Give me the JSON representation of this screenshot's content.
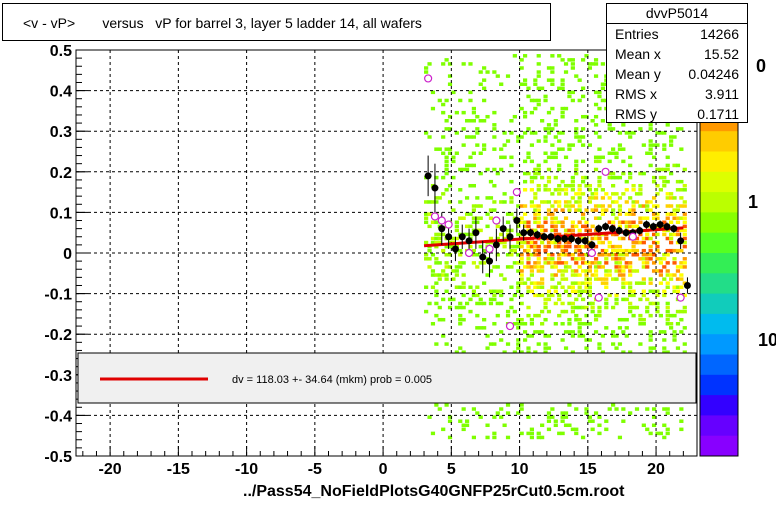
{
  "title": "<v - vP>       versus   vP for barrel 3, layer 5 ladder 14, all wafers",
  "footer": "../Pass54_NoFieldPlotsG40GNFP25rCut0.5cm.root",
  "stats": {
    "name": "dvvP5014",
    "rows": [
      {
        "label": "Entries",
        "value": "14266"
      },
      {
        "label": "Mean x",
        "value": "15.52"
      },
      {
        "label": "Mean y",
        "value": "0.04246"
      },
      {
        "label": "RMS x",
        "value": "3.911"
      },
      {
        "label": "RMS y",
        "value": "0.1711"
      }
    ]
  },
  "legend": {
    "text": "dv =  118.03 +- 34.64 (mkm) prob = 0.005"
  },
  "colorbar": {
    "labels": [
      "0",
      "1",
      "10"
    ]
  },
  "colors": {
    "fit": "#e00000",
    "points": "#000000",
    "open_points": "#cc22cc"
  },
  "chart_data": {
    "type": "scatter",
    "xlim": [
      -22.5,
      23
    ],
    "ylim": [
      -0.5,
      0.5
    ],
    "x_ticks": [
      -20,
      -15,
      -10,
      -5,
      0,
      5,
      10,
      15,
      20
    ],
    "y_ticks": [
      -0.5,
      -0.4,
      -0.3,
      -0.2,
      -0.1,
      0,
      0.1,
      0.2,
      0.3,
      0.4,
      0.5
    ],
    "grid": true,
    "fit_line": {
      "x": [
        3,
        22
      ],
      "y": [
        0.018,
        0.062
      ]
    },
    "points": [
      {
        "x": 3.3,
        "y": 0.19,
        "err": 0.05
      },
      {
        "x": 3.8,
        "y": 0.16,
        "err": 0.06
      },
      {
        "x": 4.3,
        "y": 0.06,
        "err": 0.04
      },
      {
        "x": 4.8,
        "y": 0.04,
        "err": 0.03
      },
      {
        "x": 5.3,
        "y": 0.01,
        "err": 0.03
      },
      {
        "x": 5.8,
        "y": 0.04,
        "err": 0.03
      },
      {
        "x": 6.3,
        "y": 0.03,
        "err": 0.03
      },
      {
        "x": 6.8,
        "y": 0.05,
        "err": 0.04
      },
      {
        "x": 7.3,
        "y": -0.01,
        "err": 0.04
      },
      {
        "x": 7.8,
        "y": -0.02,
        "err": 0.04
      },
      {
        "x": 8.3,
        "y": 0.02,
        "err": 0.04
      },
      {
        "x": 8.8,
        "y": 0.06,
        "err": 0.03
      },
      {
        "x": 9.3,
        "y": 0.04,
        "err": 0.03
      },
      {
        "x": 9.8,
        "y": 0.08,
        "err": 0.03
      },
      {
        "x": 10.3,
        "y": 0.05,
        "err": 0.02
      },
      {
        "x": 10.8,
        "y": 0.05,
        "err": 0.01
      },
      {
        "x": 11.3,
        "y": 0.045,
        "err": 0.01
      },
      {
        "x": 11.8,
        "y": 0.04,
        "err": 0.01
      },
      {
        "x": 12.3,
        "y": 0.04,
        "err": 0.01
      },
      {
        "x": 12.8,
        "y": 0.035,
        "err": 0.01
      },
      {
        "x": 13.3,
        "y": 0.035,
        "err": 0.01
      },
      {
        "x": 13.8,
        "y": 0.035,
        "err": 0.01
      },
      {
        "x": 14.3,
        "y": 0.03,
        "err": 0.01
      },
      {
        "x": 14.8,
        "y": 0.03,
        "err": 0.01
      },
      {
        "x": 15.3,
        "y": 0.02,
        "err": 0.01
      },
      {
        "x": 15.8,
        "y": 0.06,
        "err": 0.01
      },
      {
        "x": 16.3,
        "y": 0.065,
        "err": 0.01
      },
      {
        "x": 16.8,
        "y": 0.06,
        "err": 0.01
      },
      {
        "x": 17.3,
        "y": 0.055,
        "err": 0.01
      },
      {
        "x": 17.8,
        "y": 0.05,
        "err": 0.01
      },
      {
        "x": 18.3,
        "y": 0.05,
        "err": 0.01
      },
      {
        "x": 18.8,
        "y": 0.055,
        "err": 0.01
      },
      {
        "x": 19.3,
        "y": 0.07,
        "err": 0.01
      },
      {
        "x": 19.8,
        "y": 0.065,
        "err": 0.01
      },
      {
        "x": 20.3,
        "y": 0.07,
        "err": 0.01
      },
      {
        "x": 20.8,
        "y": 0.065,
        "err": 0.01
      },
      {
        "x": 21.3,
        "y": 0.06,
        "err": 0.01
      },
      {
        "x": 21.8,
        "y": 0.03,
        "err": 0.02
      },
      {
        "x": 22.3,
        "y": -0.08,
        "err": 0.02
      }
    ],
    "open_points": [
      {
        "x": 3.3,
        "y": 0.43
      },
      {
        "x": 3.8,
        "y": 0.09
      },
      {
        "x": 4.3,
        "y": 0.08
      },
      {
        "x": 4.8,
        "y": 0.07
      },
      {
        "x": 6.3,
        "y": 0.0
      },
      {
        "x": 7.8,
        "y": 0.01
      },
      {
        "x": 8.3,
        "y": 0.08
      },
      {
        "x": 9.3,
        "y": -0.18
      },
      {
        "x": 9.8,
        "y": 0.15
      },
      {
        "x": 15.3,
        "y": 0.0
      },
      {
        "x": 15.8,
        "y": -0.11
      },
      {
        "x": 16.3,
        "y": 0.2
      },
      {
        "x": 18.3,
        "y": 0.04
      },
      {
        "x": 21.8,
        "y": -0.11
      }
    ]
  }
}
